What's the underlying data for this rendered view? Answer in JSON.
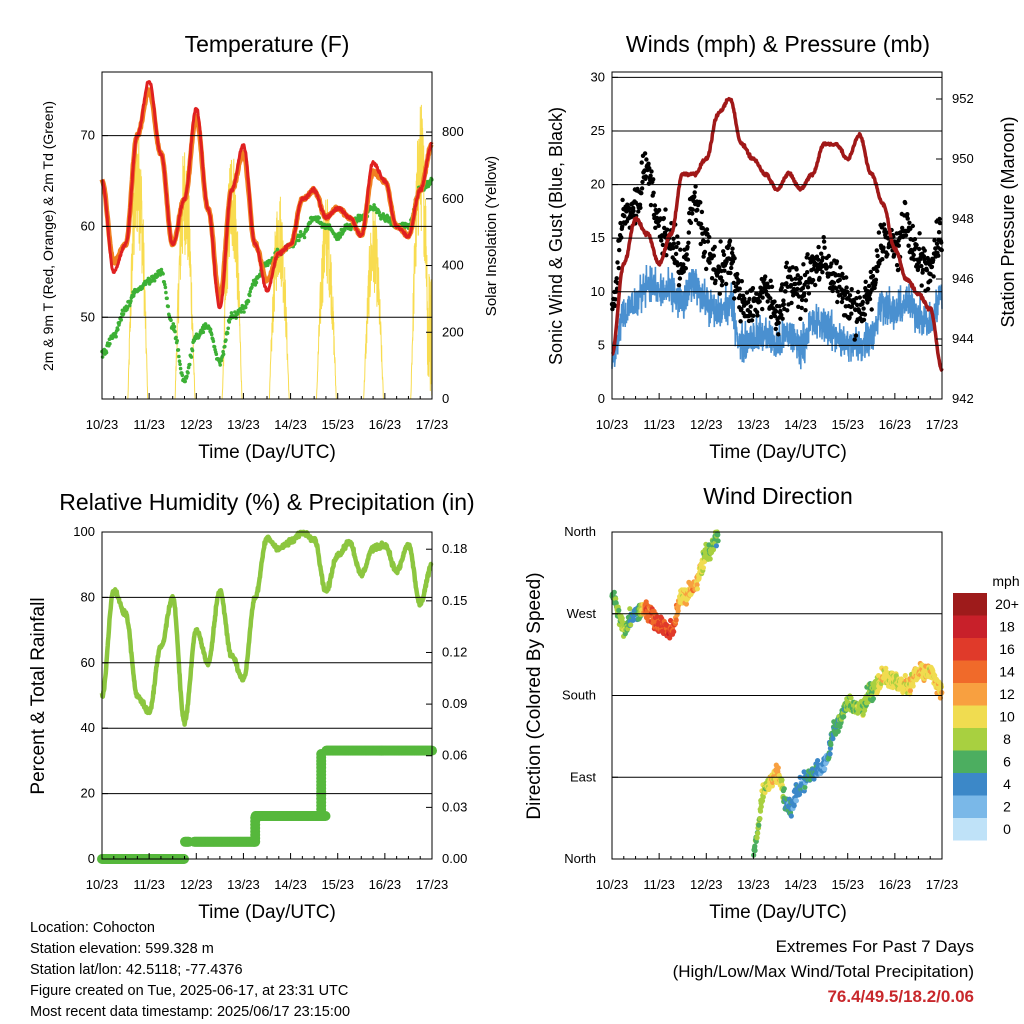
{
  "colors": {
    "temp2m": "#e02020",
    "temp9m": "#f08020",
    "dewpoint": "#3cb035",
    "solar": "#f8dc50",
    "wind": "#4a90d0",
    "gust": "#000000",
    "pressure": "#a01818",
    "rh": "#8cc63f",
    "precip": "#56b83c",
    "grid": "#000000",
    "extremes": "#c8282c"
  },
  "x_ticks": [
    "10/23",
    "11/23",
    "12/23",
    "13/23",
    "14/23",
    "15/23",
    "16/23",
    "17/23"
  ],
  "x_label": "Time (Day/UTC)",
  "panels": {
    "temperature": {
      "title": "Temperature (F)",
      "ylabel_left": "2m & 9m T (Red, Orange) & 2m Td (Green)",
      "ylabel_right": "Solar Insolation (Yellow)",
      "left_ticks": [
        "50",
        "60",
        "70"
      ],
      "right_ticks": [
        "0",
        "200",
        "400",
        "600",
        "800"
      ]
    },
    "winds": {
      "title": "Winds (mph) & Pressure (mb)",
      "ylabel_left": "Sonic Wind & Gust (Blue, Black)",
      "ylabel_right": "Station Pressure (Maroon)",
      "left_ticks": [
        "0",
        "5",
        "10",
        "15",
        "20",
        "25",
        "30"
      ],
      "right_ticks": [
        "942",
        "944",
        "946",
        "948",
        "950",
        "952"
      ]
    },
    "humidity": {
      "title": "Relative Humidity (%) & Precipitation (in)",
      "ylabel_left": "Percent & Total Rainfall",
      "left_ticks": [
        "0",
        "20",
        "40",
        "60",
        "80",
        "100"
      ],
      "right_ticks": [
        "0.00",
        "0.03",
        "0.06",
        "0.09",
        "0.12",
        "0.15",
        "0.18"
      ]
    },
    "direction": {
      "title": "Wind Direction",
      "ylabel_left": "Direction (Colored By Speed)",
      "left_ticks": [
        "North",
        "East",
        "South",
        "West",
        "North"
      ],
      "legend_title": "mph",
      "legend_labels": [
        "20+",
        "18",
        "16",
        "14",
        "12",
        "10",
        "8",
        "6",
        "4",
        "2",
        "0"
      ],
      "legend_colors": [
        "#9e1b1b",
        "#c8202a",
        "#e03a2a",
        "#f06a2a",
        "#f8a040",
        "#f0dc50",
        "#a8d040",
        "#4cae60",
        "#3c88c8",
        "#7ab8e8",
        "#bfe2f8"
      ]
    }
  },
  "chart_data": [
    {
      "type": "line",
      "title": "Temperature (F)",
      "xlabel": "Time (Day/UTC)",
      "ylabel": "2m & 9m T (Red, Orange) & 2m Td (Green)",
      "ylabel_right": "Solar Insolation (Yellow)",
      "x": [
        0,
        0.25,
        0.5,
        0.75,
        1.0,
        1.25,
        1.5,
        1.75,
        2.0,
        2.25,
        2.5,
        2.75,
        3.0,
        3.25,
        3.5,
        3.75,
        4.0,
        4.25,
        4.5,
        4.75,
        5.0,
        5.25,
        5.5,
        5.75,
        6.0,
        6.25,
        6.5,
        6.75,
        7.0
      ],
      "series": [
        {
          "name": "2m T",
          "axis": "left",
          "values": [
            65,
            55,
            58,
            70,
            76,
            68,
            58,
            63,
            73,
            62,
            51,
            64,
            69,
            58,
            53,
            57,
            58,
            63,
            64,
            61,
            62,
            61,
            59,
            67,
            65,
            60,
            59,
            64,
            69
          ]
        },
        {
          "name": "9m T",
          "axis": "left",
          "values": [
            65,
            56,
            58,
            70,
            75,
            68,
            58,
            63,
            72,
            62,
            52,
            64,
            68,
            58,
            54,
            57,
            58,
            63,
            64,
            61,
            62,
            61,
            59,
            66,
            65,
            60,
            59,
            64,
            69
          ]
        },
        {
          "name": "2m Td",
          "axis": "left",
          "values": [
            46,
            48,
            51,
            53,
            54,
            55,
            49,
            43,
            48,
            49,
            45,
            50,
            51,
            54,
            56,
            57,
            58,
            59,
            61,
            60,
            59,
            60,
            61,
            62,
            61,
            60,
            60,
            64,
            65
          ]
        },
        {
          "name": "Solar Insolation",
          "axis": "right",
          "values": [
            0,
            0,
            0,
            850,
            0,
            0,
            0,
            780,
            0,
            0,
            0,
            780,
            0,
            0,
            0,
            640,
            0,
            0,
            0,
            620,
            0,
            0,
            0,
            580,
            0,
            0,
            0,
            900,
            400
          ]
        }
      ],
      "ylim": [
        41,
        77
      ],
      "ylim_right": [
        0,
        980
      ]
    },
    {
      "type": "line",
      "title": "Winds (mph) & Pressure (mb)",
      "xlabel": "Time (Day/UTC)",
      "ylabel": "Sonic Wind & Gust (Blue, Black)",
      "ylabel_right": "Station Pressure (Maroon)",
      "x": [
        0,
        0.25,
        0.5,
        0.75,
        1.0,
        1.25,
        1.5,
        1.75,
        2.0,
        2.25,
        2.5,
        2.75,
        3.0,
        3.25,
        3.5,
        3.75,
        4.0,
        4.25,
        4.5,
        4.75,
        5.0,
        5.25,
        5.5,
        5.75,
        6.0,
        6.25,
        6.5,
        6.75,
        7.0
      ],
      "series": [
        {
          "name": "Sonic Wind",
          "axis": "left",
          "values": [
            4,
            8,
            9,
            11,
            10,
            10,
            9,
            11,
            9,
            8,
            9,
            5,
            6,
            6,
            5,
            6,
            5,
            7,
            7,
            6,
            5,
            5,
            6,
            9,
            8,
            9,
            8,
            7,
            10
          ]
        },
        {
          "name": "Gust",
          "axis": "left",
          "values": [
            8,
            17,
            18,
            22,
            16,
            15,
            12,
            19,
            14,
            12,
            13,
            9,
            9,
            10,
            8,
            11,
            10,
            12,
            13,
            11,
            9,
            8,
            10,
            15,
            14,
            16,
            13,
            12,
            16
          ]
        },
        {
          "name": "Station Pressure",
          "axis": "right",
          "values": [
            943.5,
            946.5,
            948,
            947.5,
            946.5,
            947.5,
            949.5,
            949.5,
            950,
            951.5,
            952,
            950.5,
            950,
            949.5,
            949,
            949.5,
            949,
            949.5,
            950.5,
            950.5,
            950,
            950.8,
            949.5,
            948.5,
            947,
            946,
            945.5,
            945,
            943
          ]
        }
      ],
      "ylim": [
        0,
        30.5
      ],
      "ylim_right": [
        942,
        952.9
      ]
    },
    {
      "type": "line",
      "title": "Relative Humidity (%) & Precipitation (in)",
      "xlabel": "Time (Day/UTC)",
      "ylabel": "Percent & Total Rainfall",
      "x": [
        0,
        0.25,
        0.5,
        0.75,
        1.0,
        1.25,
        1.5,
        1.75,
        2.0,
        2.25,
        2.5,
        2.75,
        3.0,
        3.25,
        3.5,
        3.75,
        4.0,
        4.25,
        4.5,
        4.75,
        5.0,
        5.25,
        5.5,
        5.75,
        6.0,
        6.25,
        6.5,
        6.75,
        7.0
      ],
      "series": [
        {
          "name": "Relative Humidity",
          "axis": "left",
          "values": [
            50,
            82,
            75,
            50,
            45,
            65,
            80,
            42,
            70,
            60,
            82,
            62,
            55,
            80,
            98,
            95,
            97,
            100,
            98,
            82,
            93,
            97,
            87,
            95,
            96,
            88,
            96,
            78,
            90
          ]
        },
        {
          "name": "Total Precipitation",
          "axis": "right",
          "values": [
            0,
            0,
            0,
            0,
            0,
            0,
            0,
            0.01,
            0.01,
            0.01,
            0.01,
            0.01,
            0.01,
            0.025,
            0.025,
            0.025,
            0.025,
            0.025,
            0.025,
            0.063,
            0.063,
            0.063,
            0.063,
            0.063,
            0.063,
            0.063,
            0.063,
            0.063,
            0.063
          ]
        }
      ],
      "ylim": [
        0,
        100
      ],
      "ylim_right": [
        0,
        0.19
      ]
    },
    {
      "type": "scatter",
      "title": "Wind Direction",
      "xlabel": "Time (Day/UTC)",
      "ylabel": "Direction (Colored By Speed)",
      "y_categories": [
        "North",
        "East",
        "South",
        "West",
        "North"
      ],
      "x": [
        0,
        0.25,
        0.5,
        0.75,
        1.0,
        1.25,
        1.5,
        1.75,
        2.0,
        2.25,
        2.5,
        2.75,
        3.0,
        3.25,
        3.5,
        3.75,
        4.0,
        4.25,
        4.5,
        4.75,
        5.0,
        5.25,
        5.5,
        5.75,
        6.0,
        6.25,
        6.5,
        6.75,
        7.0
      ],
      "series": [
        {
          "name": "Direction (deg)",
          "values": [
            290,
            255,
            270,
            275,
            260,
            250,
            290,
            300,
            335,
            355,
            null,
            null,
            10,
            80,
            95,
            55,
            80,
            95,
            105,
            145,
            170,
            165,
            185,
            200,
            195,
            190,
            205,
            205,
            185
          ]
        },
        {
          "name": "Speed (mph)",
          "values": [
            6,
            8,
            4,
            14,
            15,
            16,
            10,
            12,
            8,
            6,
            7,
            7,
            6,
            9,
            11,
            4,
            4,
            5,
            3,
            6,
            7,
            8,
            7,
            10,
            9,
            10,
            11,
            10,
            11
          ]
        }
      ],
      "ylim": [
        0,
        360
      ]
    }
  ],
  "info": {
    "location": "Location: Cohocton",
    "elevation": "Station elevation: 599.328 m",
    "latlon": "Station lat/lon: 42.5118; -77.4376",
    "created": "Figure created on Tue, 2025-06-17, at 23:31 UTC",
    "recent": "Most recent data timestamp: 2025/06/17 23:15:00"
  },
  "extremes": {
    "title": "Extremes For Past 7 Days",
    "subtitle": "(High/Low/Max Wind/Total Precipitation)",
    "values": "76.4/49.5/18.2/0.06"
  }
}
